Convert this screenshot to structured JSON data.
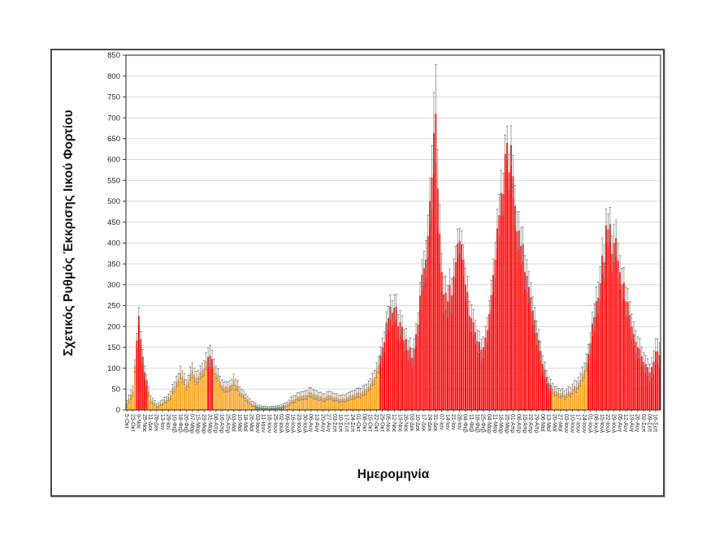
{
  "figure": {
    "background": "#ffffff",
    "border_color": "#4a4a4a"
  },
  "chart_data": {
    "type": "bar",
    "title": "",
    "xlabel": "Ημερομηνία",
    "ylabel": "Σχετικός Ρυθμός Έκκρισης Ιικού Φορτίου",
    "ylim": [
      0,
      850
    ],
    "ytick_step": 50,
    "ytick_labels": [
      0,
      50,
      100,
      150,
      200,
      250,
      300,
      350,
      400,
      450,
      500,
      550,
      600,
      650,
      700,
      750,
      800,
      850
    ],
    "grid": true,
    "legend": "none",
    "error_bars": true,
    "bars_per_interval": 3,
    "colors": {
      "r": "#ff0000",
      "o": "#faa21e",
      "g": "#3e8f43",
      "error": "#7f7f7f",
      "axis": "#404040",
      "grid": "#d9d9d9",
      "tick_text": "#262626"
    },
    "categories": [
      "5-Οκτ",
      "23-Οκτ",
      "9-Νοε",
      "25-Νοε",
      "11-Δεκ",
      "28-Δεκ",
      "13-Ιαν",
      "29-Ιαν",
      "10-Φεβ",
      "18-Φεβ",
      "26-Φεβ",
      "07-Μαρ",
      "15-Μαρ",
      "23-Μαρ",
      "31-Μαρ",
      "08-Απρ",
      "16-Απρ",
      "25-Απρ",
      "03-Μαϊ",
      "10-Μαϊ",
      "18-Μαϊ",
      "26-Μαϊ",
      "03-Ιουν",
      "11-Ιουν",
      "18-Ιουν",
      "25-Ιουν",
      "02-Ιουλ",
      "09-Ιουλ",
      "16-Ιουλ",
      "23-Ιουλ",
      "30-Ιουλ",
      "06-Αυγ",
      "13-Αυγ",
      "20-Αυγ",
      "27-Αυγ",
      "03-Σεπ",
      "10-Σεπ",
      "17-Σεπ",
      "24-Σεπ",
      "01-Οκτ",
      "08-Οκτ",
      "15-Οκτ",
      "22-Οκτ",
      "29-Οκτ",
      "05-Νοε",
      "12-Νοε",
      "19-Νοε",
      "26-Νοε",
      "03-Δεκ",
      "10-Δεκ",
      "17-Δεκ",
      "24-Δεκ",
      "31-Δεκ",
      "07-Ιαν",
      "14-Ιαν",
      "21-Ιαν",
      "28-Ιαν",
      "04-Φεβ",
      "11-Φεβ",
      "18-Φεβ",
      "25-Φεβ",
      "04-Μαρ",
      "11-Μαρ",
      "18-Μαρ",
      "25-Μαρ",
      "01-Απρ",
      "08-Απρ",
      "15-Απρ",
      "22-Απρ",
      "29-Απρ",
      "06-Μαϊ",
      "13-Μαϊ",
      "20-Μαϊ",
      "27-Μαϊ",
      "03-Ιουν",
      "10-Ιουν",
      "17-Ιουν",
      "24-Ιουν",
      "01-Ιουλ",
      "08-Ιουλ",
      "15-Ιουλ",
      "22-Ιουλ",
      "29-Ιουλ",
      "05-Αυγ",
      "12-Αυγ",
      "19-Αυγ",
      "26-Αυγ",
      "02-Σεπ",
      "09-Σεπ",
      "16-Σεπ"
    ],
    "values": [
      15,
      45,
      225,
      90,
      25,
      10,
      18,
      30,
      55,
      90,
      60,
      95,
      80,
      100,
      130,
      90,
      60,
      55,
      72,
      45,
      30,
      15,
      8,
      6,
      5,
      6,
      8,
      14,
      25,
      32,
      36,
      42,
      36,
      30,
      35,
      30,
      26,
      30,
      36,
      42,
      48,
      62,
      95,
      150,
      220,
      245,
      210,
      170,
      125,
      205,
      340,
      500,
      710,
      330,
      260,
      320,
      405,
      300,
      220,
      165,
      150,
      230,
      360,
      520,
      640,
      560,
      430,
      330,
      270,
      185,
      110,
      65,
      45,
      38,
      40,
      50,
      65,
      95,
      160,
      260,
      370,
      432,
      400,
      330,
      260,
      200,
      150,
      115,
      90,
      140
    ],
    "errors": [
      8,
      12,
      20,
      15,
      8,
      5,
      6,
      8,
      12,
      15,
      12,
      18,
      15,
      18,
      25,
      15,
      12,
      12,
      14,
      10,
      8,
      6,
      4,
      3,
      3,
      3,
      4,
      5,
      8,
      9,
      10,
      11,
      10,
      9,
      10,
      9,
      8,
      9,
      10,
      11,
      12,
      13,
      18,
      22,
      28,
      30,
      28,
      25,
      22,
      28,
      40,
      55,
      118,
      45,
      38,
      42,
      30,
      40,
      32,
      26,
      25,
      32,
      42,
      55,
      40,
      50,
      45,
      40,
      35,
      28,
      20,
      14,
      11,
      10,
      10,
      12,
      14,
      18,
      25,
      35,
      42,
      38,
      45,
      40,
      35,
      30,
      25,
      22,
      20,
      30
    ],
    "bar_colors": "oorroooooooooorooooooogggggoooooooooooooooorrrrrrrrrrrrrrrrrrrrrrrrrrrrroooooorrrrrrrrrrrrr"
  }
}
